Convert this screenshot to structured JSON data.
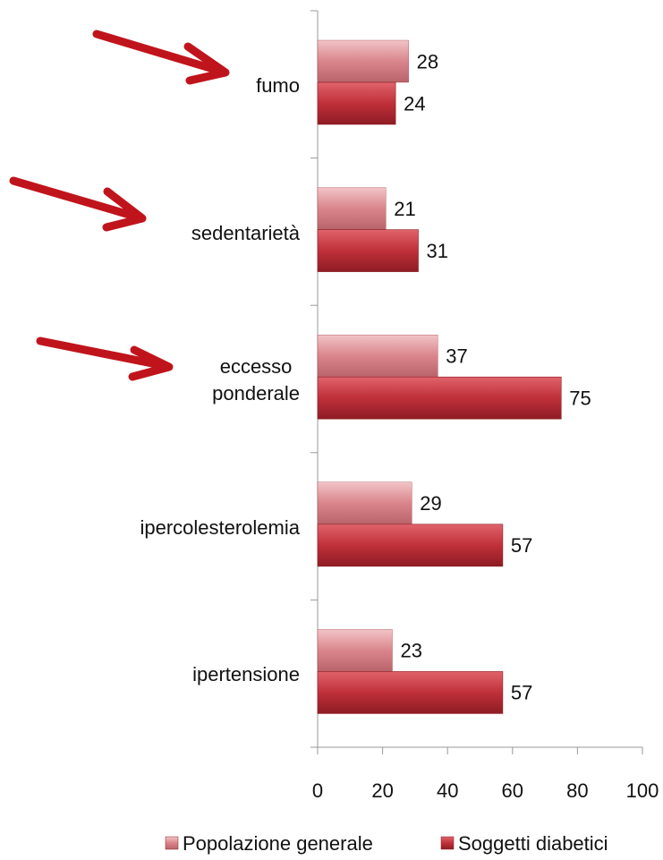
{
  "chart_data": {
    "type": "barh",
    "categories": [
      "fumo",
      "sedentarietà",
      "eccesso ponderale",
      "ipercolesterolemia",
      "ipertensione"
    ],
    "series": [
      {
        "name": "Popolazione generale",
        "color": "#d9858b",
        "values": [
          28,
          21,
          37,
          29,
          23
        ]
      },
      {
        "name": "Soggetti diabetici",
        "color": "#c0303a",
        "values": [
          24,
          31,
          75,
          57,
          57
        ]
      }
    ],
    "xlim": [
      0,
      100
    ],
    "xticks": [
      0,
      20,
      40,
      60,
      80,
      100
    ],
    "legend": "bottom"
  }
}
